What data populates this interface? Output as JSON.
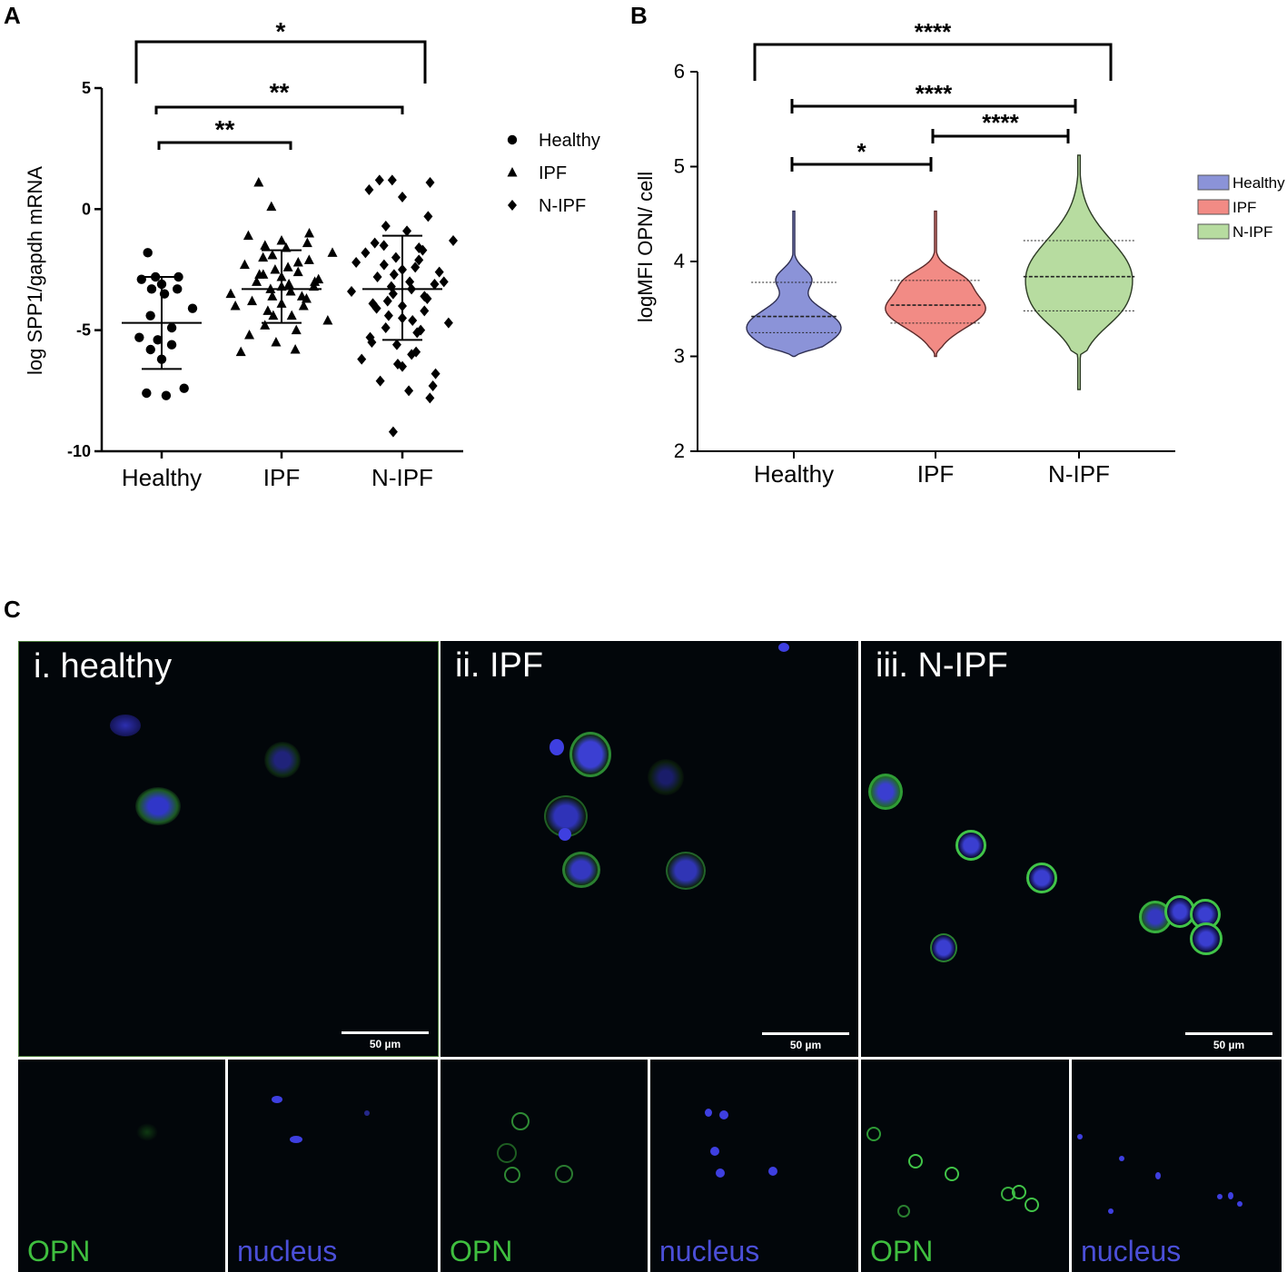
{
  "panels": {
    "a": "A",
    "b": "B",
    "c": "C"
  },
  "chart_data": [
    {
      "type": "scatter",
      "panel": "A",
      "ylabel": "log SPP1/gapdh mRNA",
      "xlabel": "",
      "ylim": [
        -10,
        5
      ],
      "yticks": [
        "5",
        "0",
        "-5",
        "-10"
      ],
      "ytick_values": [
        5,
        0,
        -5,
        -10
      ],
      "categories": [
        "Healthy",
        "IPF",
        "N-IPF"
      ],
      "series": [
        {
          "name": "Healthy",
          "marker": "circle",
          "mean": -4.7,
          "sd_low": -6.6,
          "sd_high": -2.8,
          "values": [
            -1.8,
            -2.8,
            -2.8,
            -2.9,
            -3.1,
            -3.3,
            -3.3,
            -3.5,
            -4.1,
            -4.4,
            -4.9,
            -5.3,
            -5.4,
            -5.6,
            -5.8,
            -6.2,
            -7.4,
            -7.6,
            -7.7
          ]
        },
        {
          "name": "IPF",
          "marker": "triangle",
          "mean": -3.3,
          "sd_low": -4.7,
          "sd_high": -1.7,
          "values": [
            1.1,
            0.1,
            -1.0,
            -1.1,
            -1.3,
            -1.4,
            -1.5,
            -1.6,
            -1.8,
            -2.0,
            -2.2,
            -2.3,
            -2.5,
            -2.6,
            -2.7,
            -2.8,
            -2.9,
            -3.0,
            -3.1,
            -3.2,
            -3.3,
            -3.4,
            -3.5,
            -3.6,
            -3.7,
            -3.8,
            -3.9,
            -4.0,
            -4.2,
            -4.4,
            -4.6,
            -4.8,
            -5.0,
            -5.2,
            -5.5,
            -5.8,
            -5.9,
            -3.2,
            -3.0,
            -2.7,
            -2.4,
            -2.1,
            -1.9,
            -3.6,
            -4.0,
            -4.4
          ]
        },
        {
          "name": "N-IPF",
          "marker": "diamond",
          "mean": -3.3,
          "sd_low": -5.4,
          "sd_high": -1.1,
          "values": [
            1.2,
            1.2,
            1.1,
            0.8,
            0.5,
            -0.3,
            -0.7,
            -0.9,
            -1.3,
            -1.5,
            -1.6,
            -1.8,
            -2.0,
            -2.1,
            -2.3,
            -2.5,
            -2.6,
            -2.8,
            -3.0,
            -3.1,
            -3.2,
            -3.3,
            -3.4,
            -3.5,
            -3.7,
            -3.9,
            -4.0,
            -4.2,
            -4.4,
            -4.6,
            -4.7,
            -4.9,
            -5.1,
            -5.3,
            -5.6,
            -5.9,
            -6.2,
            -6.5,
            -6.8,
            -7.1,
            -7.5,
            -7.8,
            -9.2,
            -1.7,
            -2.2,
            -2.7,
            -3.6,
            -4.1,
            -4.5,
            -5.0,
            -5.5,
            -6.0,
            -3.0,
            -3.8,
            -2.4,
            -1.4,
            -6.4,
            -7.3
          ]
        }
      ],
      "significance": [
        {
          "from": "Healthy",
          "to": "IPF",
          "label": "**"
        },
        {
          "from": "Healthy",
          "to": "N-IPF",
          "label": "**"
        },
        {
          "from": "Healthy",
          "to": "N-IPF",
          "label": "*"
        }
      ],
      "legend": {
        "position": "right",
        "entries": [
          "Healthy",
          "IPF",
          "N-IPF"
        ]
      }
    },
    {
      "type": "violin",
      "panel": "B",
      "ylabel": "logMFI OPN/ cell",
      "xlabel": "",
      "ylim": [
        2,
        6
      ],
      "yticks": [
        "6",
        "5",
        "4",
        "3",
        "2"
      ],
      "ytick_values": [
        6,
        5,
        4,
        3,
        2
      ],
      "categories": [
        "Healthy",
        "IPF",
        "N-IPF"
      ],
      "series": [
        {
          "name": "Healthy",
          "color": "#8b93d8",
          "min": 3.0,
          "max": 4.53,
          "q1": 3.25,
          "median": 3.42,
          "q3": 3.78
        },
        {
          "name": "IPF",
          "color": "#f28b85",
          "min": 3.0,
          "max": 4.53,
          "q1": 3.35,
          "median": 3.54,
          "q3": 3.8
        },
        {
          "name": "N-IPF",
          "color": "#b7dca0",
          "min": 2.65,
          "max": 5.12,
          "q1": 3.48,
          "median": 3.84,
          "q3": 4.22
        }
      ],
      "significance": [
        {
          "from": "Healthy",
          "to": "IPF",
          "label": "*"
        },
        {
          "from": "IPF",
          "to": "N-IPF",
          "label": "****"
        },
        {
          "from": "Healthy",
          "to": "N-IPF",
          "label": "****"
        },
        {
          "from": "Healthy",
          "to": "N-IPF",
          "label": "****"
        }
      ],
      "legend": {
        "position": "right",
        "entries": [
          "Healthy",
          "IPF",
          "N-IPF"
        ]
      }
    }
  ],
  "micrographs": {
    "main": [
      {
        "title": "i. healthy",
        "scale": "50 µm"
      },
      {
        "title": "ii. IPF",
        "scale": "50 µm"
      },
      {
        "title": "iii. N-IPF",
        "scale": "50 µm"
      }
    ],
    "channels": [
      {
        "label": "OPN",
        "color": "#3fbf3f"
      },
      {
        "label": "nucleus",
        "color": "#4b4fd8"
      },
      {
        "label": "OPN",
        "color": "#3fbf3f"
      },
      {
        "label": "nucleus",
        "color": "#4b4fd8"
      },
      {
        "label": "OPN",
        "color": "#3fbf3f"
      },
      {
        "label": "nucleus",
        "color": "#4b4fd8"
      }
    ]
  }
}
